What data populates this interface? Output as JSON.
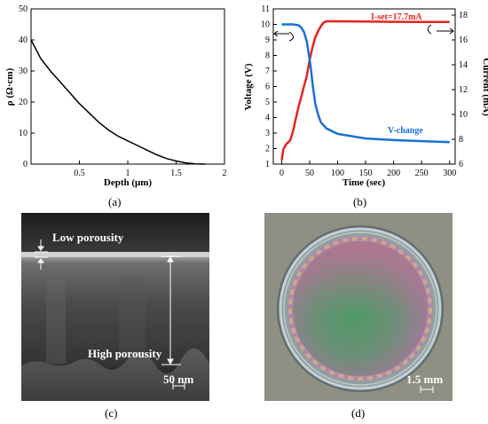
{
  "panels": {
    "a": {
      "caption": "(a)"
    },
    "b": {
      "caption": "(b)"
    },
    "c": {
      "caption": "(c)",
      "labels": {
        "top": "Low porousity",
        "bottom": "High porousity",
        "scale": "50 nm"
      }
    },
    "d": {
      "caption": "(d)",
      "labels": {
        "scale": "1.5 mm"
      }
    }
  },
  "chart_data": [
    {
      "type": "line",
      "xlabel": "Depth (μm)",
      "ylabel": "ρ (Ω·cm)",
      "xlim": [
        0,
        2
      ],
      "ylim": [
        0,
        50
      ],
      "xticks": [
        "0.5",
        "1",
        "1.5",
        "2"
      ],
      "yticks": [
        "0",
        "10",
        "20",
        "30",
        "40",
        "50"
      ],
      "grid": false,
      "series": [
        {
          "x": [
            0,
            0.05,
            0.1,
            0.2,
            0.3,
            0.4,
            0.5,
            0.6,
            0.7,
            0.8,
            0.9,
            1.0,
            1.1,
            1.2,
            1.3,
            1.4,
            1.5,
            1.6,
            1.7,
            1.8
          ],
          "values": [
            40,
            37,
            34,
            30,
            26.5,
            23,
            19.5,
            16.5,
            13.5,
            11,
            9,
            7.5,
            6,
            4.5,
            3,
            1.8,
            1,
            0.4,
            0.1,
            0
          ],
          "color": "#000000"
        }
      ]
    },
    {
      "type": "line",
      "xlabel": "Time (sec)",
      "ylabel": "Voltage (V)",
      "y2label": "Current (mA)",
      "xlim": [
        -15,
        310
      ],
      "ylim": [
        1,
        11
      ],
      "y2lim": [
        6,
        18.5
      ],
      "xticks": [
        "0",
        "50",
        "100",
        "150",
        "200",
        "250",
        "300"
      ],
      "yticks": [
        "1",
        "2",
        "3",
        "4",
        "5",
        "6",
        "7",
        "8",
        "9",
        "10",
        "11"
      ],
      "y2ticks": [
        "6",
        "8",
        "10",
        "12",
        "14",
        "16",
        "18"
      ],
      "annotations": [
        "I-set=17.7mA",
        "V-change"
      ],
      "series": [
        {
          "name": "I-set=17.7mA",
          "axis": "right",
          "color": "#e8211d",
          "x": [
            0,
            3,
            8,
            15,
            20,
            25,
            30,
            35,
            40,
            45,
            50,
            55,
            60,
            65,
            70,
            75,
            80,
            100,
            150,
            200,
            250,
            300
          ],
          "values": [
            6.3,
            7.2,
            7.6,
            7.9,
            8.6,
            9.6,
            10.6,
            11.4,
            12.3,
            13.1,
            14.4,
            15.4,
            16.2,
            16.7,
            17.1,
            17.4,
            17.5,
            17.5,
            17.48,
            17.46,
            17.45,
            17.45
          ]
        },
        {
          "name": "V-change",
          "axis": "left",
          "color": "#1a6fd6",
          "x": [
            0,
            20,
            30,
            35,
            40,
            45,
            48,
            52,
            55,
            60,
            65,
            70,
            80,
            100,
            150,
            200,
            250,
            300
          ],
          "values": [
            10,
            10,
            9.95,
            9.8,
            9.5,
            8.9,
            8.2,
            7.2,
            6.2,
            4.9,
            4.2,
            3.7,
            3.3,
            2.95,
            2.65,
            2.55,
            2.48,
            2.42
          ]
        }
      ]
    }
  ]
}
